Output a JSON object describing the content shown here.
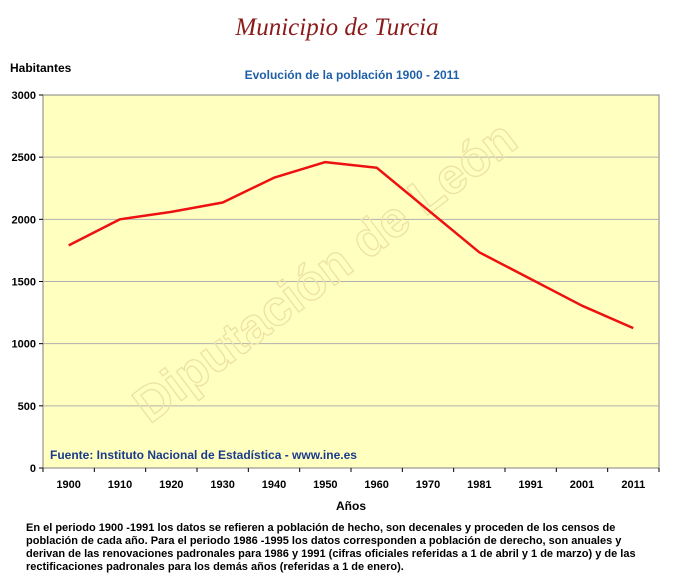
{
  "header": {
    "title": "Municipio de Turcia",
    "ylabel": "Habitantes",
    "subtitle": "Evolución de la población 1900 - 2011"
  },
  "watermark": "Diputación de León",
  "source_note": "Fuente: Instituto Nacional de Estadística - www.ine.es",
  "footnote": "En el periodo 1900 -1991 los datos se refieren a población de hecho, son decenales y proceden de los censos de población de cada año. Para el periodo 1986 -1995 los datos corresponden a población de derecho, son anuales y derivan de las renovaciones padronales para 1986 y 1991 (cifras oficiales referidas a 1 de abril y 1 de marzo) y de las rectificaciones padronales para los demás años (referidas a 1 de enero).",
  "colors": {
    "plot_bg": "#ffffc0",
    "line": "#ee1111",
    "title": "#8b1a1a",
    "subtitle": "#1f5fa8",
    "source": "#1a3a8c"
  },
  "chart_data": {
    "type": "line",
    "title": "Evolución de la población 1900 - 2011",
    "xlabel": "Años",
    "ylabel": "Habitantes",
    "categories": [
      "1900",
      "1910",
      "1920",
      "1930",
      "1940",
      "1950",
      "1960",
      "1970",
      "1981",
      "1991",
      "2001",
      "2011"
    ],
    "series": [
      {
        "values": [
          1790,
          2000,
          2060,
          2135,
          2335,
          2460,
          2415,
          null,
          1735,
          1520,
          1305,
          1125
        ]
      }
    ],
    "ylim": [
      0,
      3000
    ],
    "yticks": [
      "0",
      "500",
      "1000",
      "1500",
      "2000",
      "2500",
      "3000"
    ],
    "grid": true
  }
}
